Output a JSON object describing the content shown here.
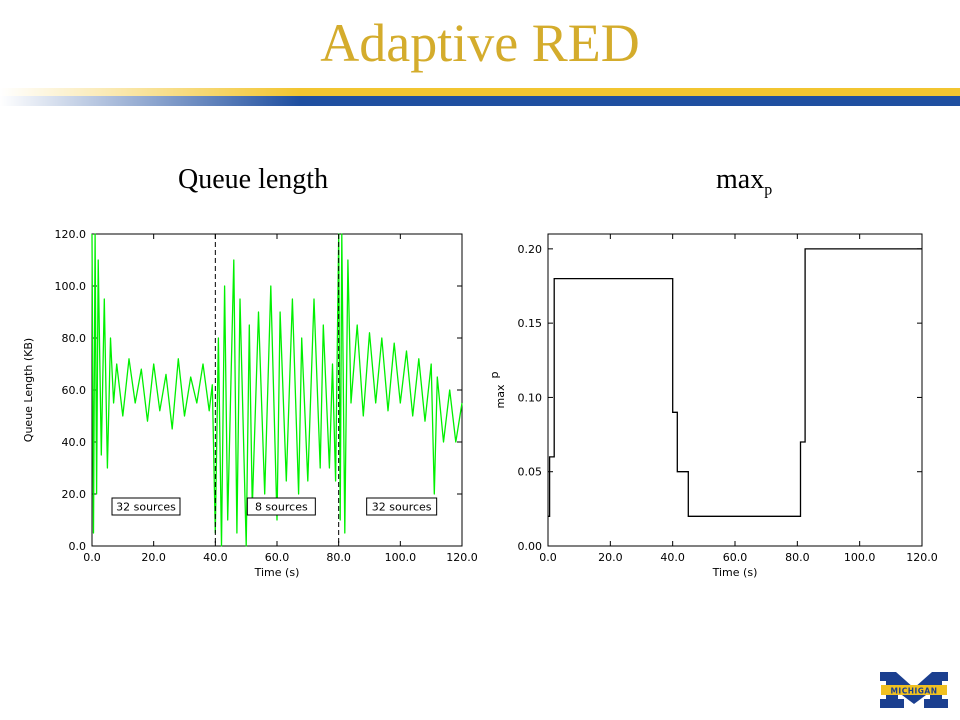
{
  "title": "Adaptive RED",
  "colors": {
    "title": "#D4AC2C",
    "rule_yellow": "#F2C530",
    "rule_blue": "#1F4FA0",
    "queue_trace": "#00F000",
    "step_line": "#000000",
    "logo_blue": "#1B3F8F",
    "logo_gold": "#F0C020"
  },
  "labels": {
    "left_panel": "Queue length",
    "right_panel_base": "max",
    "right_panel_sub": "p"
  },
  "logo": {
    "text": "MICHIGAN",
    "icon": "block-m-icon"
  },
  "chart_data": [
    {
      "type": "line",
      "title": "",
      "xlabel": "Time (s)",
      "ylabel": "Queue Length (KB)",
      "xlim": [
        0,
        120
      ],
      "ylim": [
        0,
        120
      ],
      "x_ticks": [
        "0.0",
        "20.0",
        "40.0",
        "60.0",
        "80.0",
        "100.0",
        "120.0"
      ],
      "y_ticks": [
        "0.0",
        "20.0",
        "40.0",
        "60.0",
        "80.0",
        "100.0",
        "120.0"
      ],
      "grid": false,
      "phases": [
        {
          "label": "32 sources",
          "start": 0,
          "end": 40
        },
        {
          "label": "8 sources",
          "start": 40,
          "end": 80
        },
        {
          "label": "32 sources",
          "start": 80,
          "end": 120
        }
      ],
      "phase_boundaries": [
        40,
        80
      ],
      "series": [
        {
          "values": [
            [
              0,
              120
            ],
            [
              0.5,
              5
            ],
            [
              1,
              120
            ],
            [
              1.5,
              20
            ],
            [
              2,
              110
            ],
            [
              3,
              35
            ],
            [
              4,
              95
            ],
            [
              5,
              30
            ],
            [
              6,
              80
            ],
            [
              7,
              55
            ],
            [
              8,
              70
            ],
            [
              10,
              50
            ],
            [
              12,
              72
            ],
            [
              14,
              55
            ],
            [
              16,
              68
            ],
            [
              18,
              48
            ],
            [
              20,
              70
            ],
            [
              22,
              52
            ],
            [
              24,
              66
            ],
            [
              26,
              45
            ],
            [
              28,
              72
            ],
            [
              30,
              50
            ],
            [
              32,
              65
            ],
            [
              34,
              55
            ],
            [
              36,
              70
            ],
            [
              38,
              52
            ],
            [
              39,
              62
            ],
            [
              40,
              5
            ],
            [
              41,
              80
            ],
            [
              42,
              0
            ],
            [
              43,
              100
            ],
            [
              44,
              10
            ],
            [
              46,
              110
            ],
            [
              47,
              5
            ],
            [
              48,
              95
            ],
            [
              50,
              0
            ],
            [
              51,
              85
            ],
            [
              52,
              15
            ],
            [
              54,
              90
            ],
            [
              56,
              20
            ],
            [
              58,
              100
            ],
            [
              60,
              10
            ],
            [
              61,
              90
            ],
            [
              63,
              25
            ],
            [
              65,
              95
            ],
            [
              67,
              20
            ],
            [
              68,
              80
            ],
            [
              70,
              25
            ],
            [
              72,
              95
            ],
            [
              74,
              30
            ],
            [
              75,
              85
            ],
            [
              77,
              30
            ],
            [
              78,
              70
            ],
            [
              79,
              25
            ],
            [
              80,
              120
            ],
            [
              80.5,
              10
            ],
            [
              81,
              120
            ],
            [
              82,
              5
            ],
            [
              83,
              110
            ],
            [
              84,
              55
            ],
            [
              86,
              85
            ],
            [
              88,
              50
            ],
            [
              90,
              82
            ],
            [
              92,
              55
            ],
            [
              94,
              80
            ],
            [
              96,
              52
            ],
            [
              98,
              78
            ],
            [
              100,
              55
            ],
            [
              102,
              75
            ],
            [
              104,
              50
            ],
            [
              106,
              72
            ],
            [
              108,
              48
            ],
            [
              110,
              70
            ],
            [
              111,
              20
            ],
            [
              112,
              65
            ],
            [
              114,
              40
            ],
            [
              116,
              60
            ],
            [
              118,
              40
            ],
            [
              120,
              55
            ]
          ]
        }
      ]
    },
    {
      "type": "line",
      "title": "",
      "xlabel": "Time (s)",
      "ylabel": "max_p",
      "ylabel_base": "max",
      "ylabel_sub": "p",
      "xlim": [
        0,
        120
      ],
      "ylim": [
        0,
        0.21
      ],
      "x_ticks": [
        "0.0",
        "20.0",
        "40.0",
        "60.0",
        "80.0",
        "100.0",
        "120.0"
      ],
      "y_ticks": [
        "0.00",
        "0.05",
        "0.10",
        "0.15",
        "0.20"
      ],
      "grid": false,
      "series": [
        {
          "step": true,
          "values": [
            [
              0,
              0.02
            ],
            [
              0.5,
              0.06
            ],
            [
              2,
              0.18
            ],
            [
              40,
              0.09
            ],
            [
              41.5,
              0.05
            ],
            [
              45,
              0.02
            ],
            [
              81,
              0.07
            ],
            [
              82.5,
              0.2
            ],
            [
              120,
              0.2
            ]
          ]
        }
      ]
    }
  ]
}
